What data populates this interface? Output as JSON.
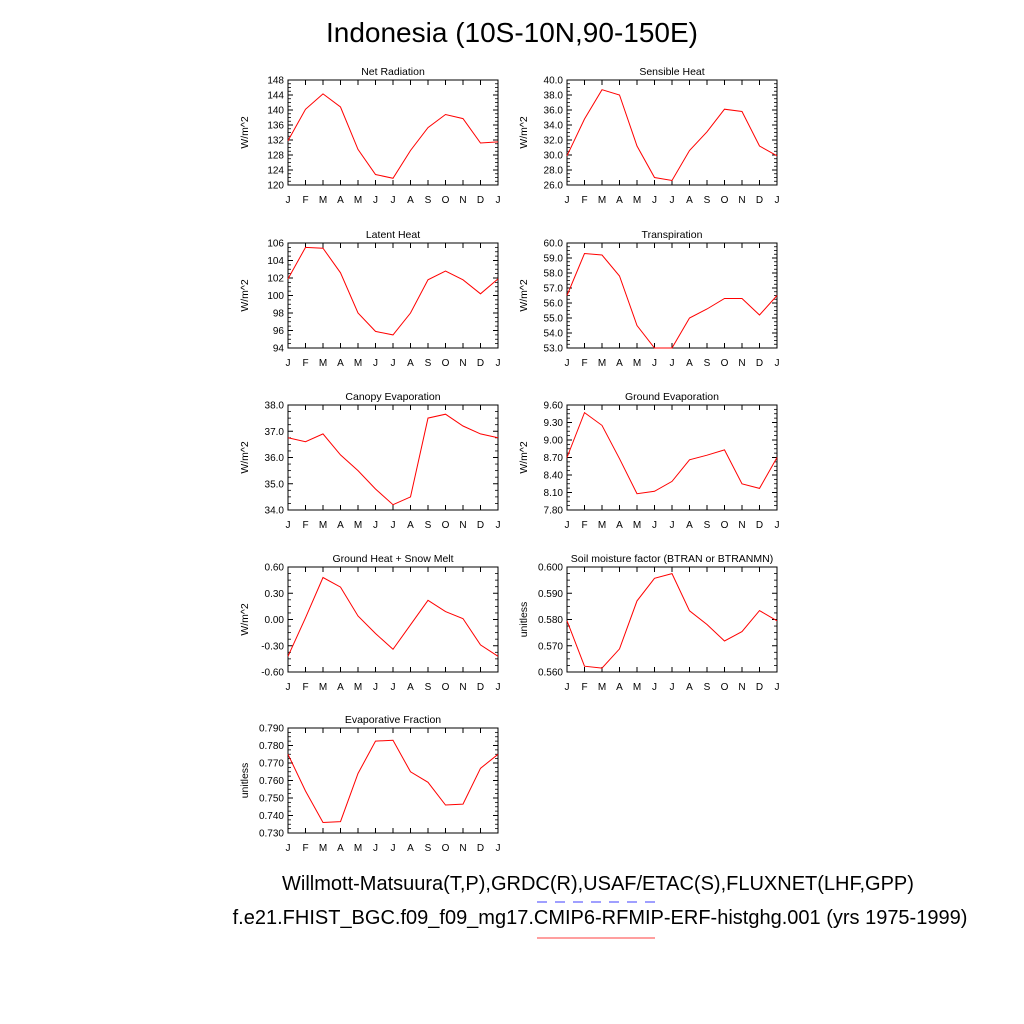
{
  "figure": {
    "title": "Indonesia (10S-10N,90-150E)",
    "footer_obs": "Willmott-Matsuura(T,P),GRDC(R),USAF/ETAC(S),FLUXNET(LHF,GPP)",
    "footer_case": "f.e21.FHIST_BGC.f09_f09_mg17.CMIP6-RFMIP-ERF-histghg.001 (yrs 1975-1999)",
    "line_color": "#ff0000",
    "obs_legend_color": "#6666ff",
    "case_legend_color": "#ff6666"
  },
  "chart_data": [
    {
      "type": "line",
      "title": "Net Radiation",
      "ylabel": "W/m^2",
      "categories": [
        "J",
        "F",
        "M",
        "A",
        "M",
        "J",
        "J",
        "A",
        "S",
        "O",
        "N",
        "D",
        "J"
      ],
      "ylim": [
        120,
        148
      ],
      "yticks": [
        "120",
        "124",
        "128",
        "132",
        "136",
        "140",
        "144",
        "148"
      ],
      "values": [
        131.8,
        140.2,
        144.3,
        140.8,
        129.5,
        122.8,
        121.8,
        129.2,
        135.3,
        138.8,
        137.7,
        131.2,
        131.5
      ]
    },
    {
      "type": "line",
      "title": "Sensible Heat",
      "ylabel": "W/m^2",
      "categories": [
        "J",
        "F",
        "M",
        "A",
        "M",
        "J",
        "J",
        "A",
        "S",
        "O",
        "N",
        "D",
        "J"
      ],
      "ylim": [
        26,
        40
      ],
      "yticks": [
        "26.0",
        "28.0",
        "30.0",
        "32.0",
        "34.0",
        "36.0",
        "38.0",
        "40.0"
      ],
      "values": [
        29.9,
        34.8,
        38.7,
        38.0,
        31.2,
        27.0,
        26.6,
        30.6,
        33.1,
        36.1,
        35.8,
        31.2,
        29.9
      ]
    },
    {
      "type": "line",
      "title": "Latent Heat",
      "ylabel": "W/m^2",
      "categories": [
        "J",
        "F",
        "M",
        "A",
        "M",
        "J",
        "J",
        "A",
        "S",
        "O",
        "N",
        "D",
        "J"
      ],
      "ylim": [
        94,
        106
      ],
      "yticks": [
        "94",
        "96",
        "98",
        "100",
        "102",
        "104",
        "106"
      ],
      "values": [
        101.9,
        105.5,
        105.4,
        102.6,
        98.0,
        95.9,
        95.5,
        98.0,
        101.8,
        102.8,
        101.8,
        100.2,
        101.9
      ]
    },
    {
      "type": "line",
      "title": "Transpiration",
      "ylabel": "W/m^2",
      "categories": [
        "J",
        "F",
        "M",
        "A",
        "M",
        "J",
        "J",
        "A",
        "S",
        "O",
        "N",
        "D",
        "J"
      ],
      "ylim": [
        53,
        60
      ],
      "yticks": [
        "53.0",
        "54.0",
        "55.0",
        "56.0",
        "57.0",
        "58.0",
        "59.0",
        "60.0"
      ],
      "values": [
        56.5,
        59.3,
        59.2,
        57.8,
        54.5,
        53.0,
        53.0,
        55.0,
        55.6,
        56.3,
        56.3,
        55.2,
        56.5
      ]
    },
    {
      "type": "line",
      "title": "Canopy Evaporation",
      "ylabel": "W/m^2",
      "categories": [
        "J",
        "F",
        "M",
        "A",
        "M",
        "J",
        "J",
        "A",
        "S",
        "O",
        "N",
        "D",
        "J"
      ],
      "ylim": [
        34,
        38
      ],
      "yticks": [
        "34.0",
        "35.0",
        "36.0",
        "37.0",
        "38.0"
      ],
      "values": [
        36.75,
        36.6,
        36.9,
        36.1,
        35.5,
        34.8,
        34.2,
        34.5,
        37.5,
        37.65,
        37.2,
        36.9,
        36.75
      ]
    },
    {
      "type": "line",
      "title": "Ground Evaporation",
      "ylabel": "W/m^2",
      "categories": [
        "J",
        "F",
        "M",
        "A",
        "M",
        "J",
        "J",
        "A",
        "S",
        "O",
        "N",
        "D",
        "J"
      ],
      "ylim": [
        7.8,
        9.6
      ],
      "yticks": [
        "7.80",
        "8.10",
        "8.40",
        "8.70",
        "9.00",
        "9.30",
        "9.60"
      ],
      "values": [
        8.7,
        9.47,
        9.25,
        8.68,
        8.08,
        8.12,
        8.29,
        8.66,
        8.74,
        8.83,
        8.25,
        8.17,
        8.7
      ]
    },
    {
      "type": "line",
      "title": "Ground Heat + Snow Melt",
      "ylabel": "W/m^2",
      "categories": [
        "J",
        "F",
        "M",
        "A",
        "M",
        "J",
        "J",
        "A",
        "S",
        "O",
        "N",
        "D",
        "J"
      ],
      "ylim": [
        -0.6,
        0.6
      ],
      "yticks": [
        "-0.60",
        "-0.30",
        "0.00",
        "0.30",
        "0.60"
      ],
      "values": [
        -0.42,
        0.02,
        0.48,
        0.37,
        0.04,
        -0.16,
        -0.34,
        -0.06,
        0.22,
        0.09,
        0.01,
        -0.29,
        -0.42
      ]
    },
    {
      "type": "line",
      "title": "Soil moisture factor (BTRAN or BTRANMN)",
      "ylabel": "unitless",
      "categories": [
        "J",
        "F",
        "M",
        "A",
        "M",
        "J",
        "J",
        "A",
        "S",
        "O",
        "N",
        "D",
        "J"
      ],
      "ylim": [
        0.56,
        0.6
      ],
      "yticks": [
        "0.560",
        "0.570",
        "0.580",
        "0.590",
        "0.600"
      ],
      "values": [
        0.5795,
        0.5622,
        0.5615,
        0.5688,
        0.5871,
        0.5957,
        0.5975,
        0.5833,
        0.5781,
        0.5718,
        0.5754,
        0.5834,
        0.5795
      ]
    },
    {
      "type": "line",
      "title": "Evaporative Fraction",
      "ylabel": "unitless",
      "categories": [
        "J",
        "F",
        "M",
        "A",
        "M",
        "J",
        "J",
        "A",
        "S",
        "O",
        "N",
        "D",
        "J"
      ],
      "ylim": [
        0.73,
        0.79
      ],
      "yticks": [
        "0.730",
        "0.740",
        "0.750",
        "0.760",
        "0.770",
        "0.780",
        "0.790"
      ],
      "values": [
        0.775,
        0.754,
        0.736,
        0.7365,
        0.764,
        0.7825,
        0.783,
        0.765,
        0.759,
        0.746,
        0.7465,
        0.767,
        0.775
      ]
    }
  ]
}
